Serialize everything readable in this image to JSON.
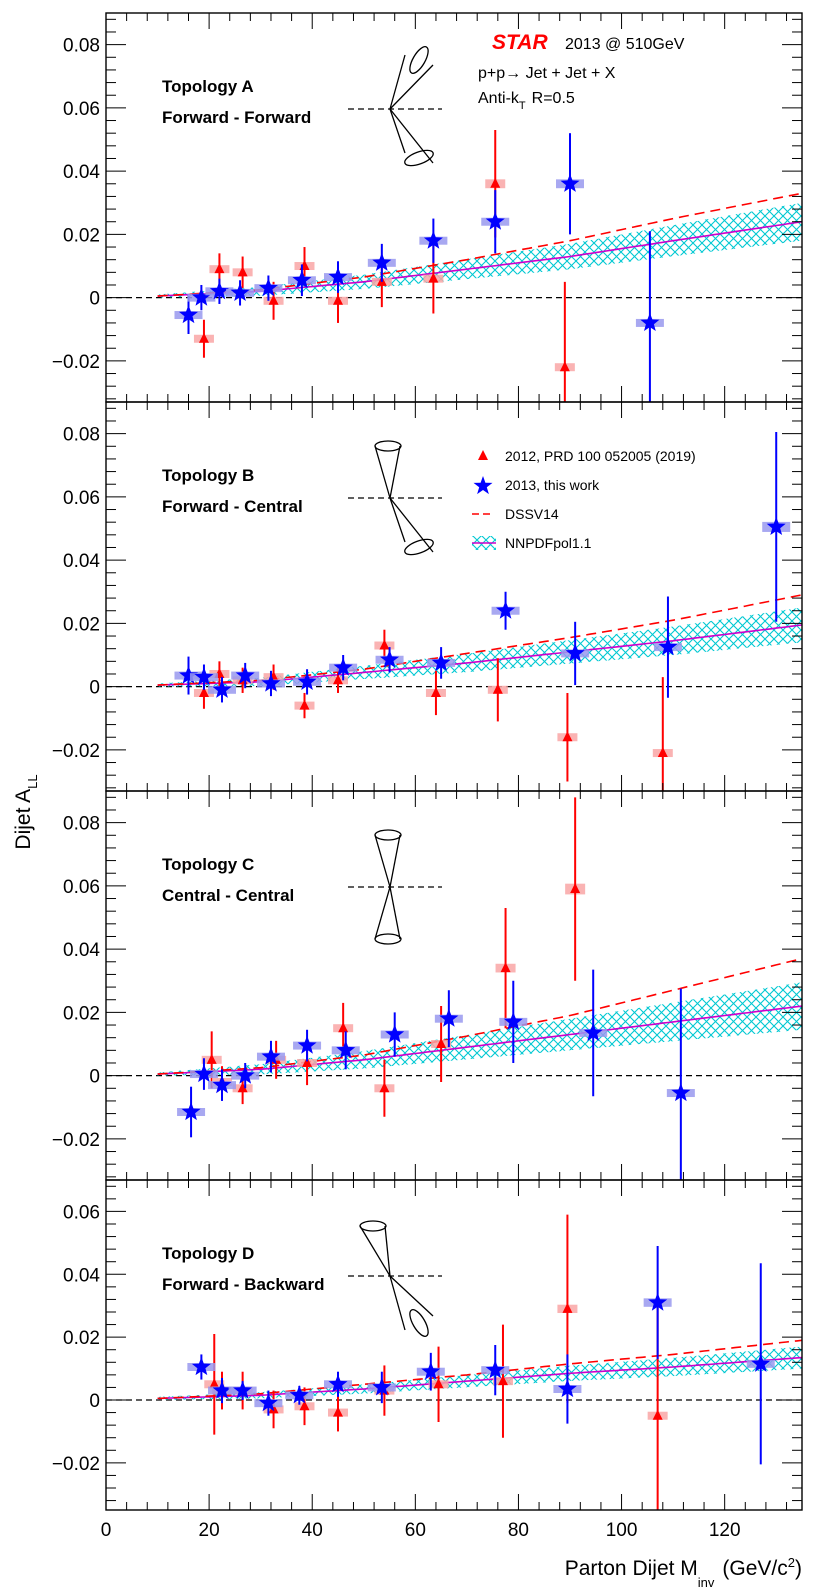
{
  "header": {
    "brand": "STAR",
    "year_energy": "2013 @ 510GeV",
    "process": "p+p→ Jet + Jet + X",
    "algo_main": "Anti-k",
    "algo_sub": "T",
    "algo_rest": "R=0.5"
  },
  "axes": {
    "ylabel_main": "Dijet A",
    "ylabel_sub": "LL",
    "xlabel_main": "Parton Dijet M",
    "xlabel_sub": "inv",
    "xlabel_units": "(GeV/c",
    "xlabel_power": "2",
    "xlabel_close": ")"
  },
  "legend": {
    "entries": [
      {
        "label": "2012, PRD 100 052005 (2019)",
        "type": "triangle",
        "color": "#ff0000"
      },
      {
        "label": "2013, this  work",
        "type": "star",
        "color": "#0000ff"
      },
      {
        "label": "DSSV14",
        "type": "dashed",
        "color": "#ff0000"
      },
      {
        "label": "NNPDFpol1.1",
        "type": "band",
        "color": "#cc00cc"
      }
    ]
  },
  "colors": {
    "red": "#ff0000",
    "blue": "#0000ff",
    "red_box": "#f9a6a6",
    "blue_box": "#9999ee",
    "band": "#00c8d2",
    "nnpdf_line": "#cc00cc"
  },
  "chart_data": [
    {
      "type": "scatter",
      "panel": "A",
      "title_line1": "Topology A",
      "title_line2": "Forward - Forward",
      "xlim": [
        0,
        135
      ],
      "ylim": [
        -0.033,
        0.09
      ],
      "yticks": [
        -0.02,
        0,
        0.02,
        0.04,
        0.06,
        0.08
      ],
      "ytick_labels": [
        "−0.02",
        "0",
        "0.02",
        "0.04",
        "0.06",
        "0.08"
      ],
      "series": [
        {
          "name": "2012, PRD 100 052005 (2019)",
          "marker": "triangle",
          "points": [
            {
              "x": 19.0,
              "y": -0.013,
              "err": 0.006
            },
            {
              "x": 22.0,
              "y": 0.009,
              "err": 0.005
            },
            {
              "x": 26.5,
              "y": 0.008,
              "err": 0.005
            },
            {
              "x": 32.5,
              "y": -0.001,
              "err": 0.006
            },
            {
              "x": 38.5,
              "y": 0.01,
              "err": 0.006
            },
            {
              "x": 45.0,
              "y": -0.001,
              "err": 0.007
            },
            {
              "x": 53.5,
              "y": 0.005,
              "err": 0.008
            },
            {
              "x": 63.5,
              "y": 0.006,
              "err": 0.011
            },
            {
              "x": 75.5,
              "y": 0.036,
              "err": 0.017
            },
            {
              "x": 89.0,
              "y": -0.022,
              "err": 0.027
            }
          ]
        },
        {
          "name": "2013, this  work",
          "marker": "star",
          "points": [
            {
              "x": 16.0,
              "y": -0.0055,
              "err": 0.006
            },
            {
              "x": 18.5,
              "y": 0.0,
              "err": 0.004
            },
            {
              "x": 22.0,
              "y": 0.002,
              "err": 0.004
            },
            {
              "x": 26.0,
              "y": 0.0015,
              "err": 0.004
            },
            {
              "x": 31.5,
              "y": 0.003,
              "err": 0.004
            },
            {
              "x": 38.0,
              "y": 0.0055,
              "err": 0.005
            },
            {
              "x": 45.0,
              "y": 0.0065,
              "err": 0.005
            },
            {
              "x": 53.5,
              "y": 0.011,
              "err": 0.006
            },
            {
              "x": 63.5,
              "y": 0.018,
              "err": 0.007
            },
            {
              "x": 75.5,
              "y": 0.024,
              "err": 0.01
            },
            {
              "x": 90.0,
              "y": 0.036,
              "err": 0.016
            },
            {
              "x": 105.5,
              "y": -0.008,
              "err": 0.029
            }
          ]
        },
        {
          "name": "DSSV14",
          "curve": [
            [
              10,
              0.0005
            ],
            [
              30,
              0.0025
            ],
            [
              50,
              0.0065
            ],
            [
              70,
              0.012
            ],
            [
              90,
              0.018
            ],
            [
              110,
              0.025
            ],
            [
              135,
              0.033
            ]
          ]
        },
        {
          "name": "NNPDFpol1.1",
          "curve": [
            [
              10,
              0.0005
            ],
            [
              30,
              0.002
            ],
            [
              50,
              0.005
            ],
            [
              70,
              0.009
            ],
            [
              90,
              0.013
            ],
            [
              110,
              0.018
            ],
            [
              135,
              0.024
            ]
          ],
          "band_half_width": [
            [
              10,
              0.0005
            ],
            [
              135,
              0.006
            ]
          ]
        }
      ]
    },
    {
      "type": "scatter",
      "panel": "B",
      "title_line1": "Topology B",
      "title_line2": "Forward - Central",
      "xlim": [
        0,
        135
      ],
      "ylim": [
        -0.033,
        0.09
      ],
      "yticks": [
        -0.02,
        0,
        0.02,
        0.04,
        0.06,
        0.08
      ],
      "ytick_labels": [
        "−0.02",
        "0",
        "0.02",
        "0.04",
        "0.06",
        "0.08"
      ],
      "series": [
        {
          "name": "2012, PRD 100 052005 (2019)",
          "marker": "triangle",
          "points": [
            {
              "x": 19.0,
              "y": -0.002,
              "err": 0.005
            },
            {
              "x": 22.0,
              "y": 0.004,
              "err": 0.004
            },
            {
              "x": 26.5,
              "y": 0.002,
              "err": 0.004
            },
            {
              "x": 32.5,
              "y": 0.003,
              "err": 0.004
            },
            {
              "x": 38.5,
              "y": -0.006,
              "err": 0.004
            },
            {
              "x": 45.0,
              "y": 0.002,
              "err": 0.004
            },
            {
              "x": 54.0,
              "y": 0.013,
              "err": 0.005
            },
            {
              "x": 64.0,
              "y": -0.002,
              "err": 0.007
            },
            {
              "x": 76.0,
              "y": -0.001,
              "err": 0.01
            },
            {
              "x": 89.5,
              "y": -0.016,
              "err": 0.014
            },
            {
              "x": 108.0,
              "y": -0.021,
              "err": 0.024
            }
          ]
        },
        {
          "name": "2013, this  work",
          "marker": "star",
          "points": [
            {
              "x": 16.0,
              "y": 0.0035,
              "err": 0.006
            },
            {
              "x": 19.0,
              "y": 0.003,
              "err": 0.004
            },
            {
              "x": 22.5,
              "y": -0.001,
              "err": 0.004
            },
            {
              "x": 27.0,
              "y": 0.0035,
              "err": 0.004
            },
            {
              "x": 32.0,
              "y": 0.001,
              "err": 0.004
            },
            {
              "x": 39.0,
              "y": 0.0015,
              "err": 0.004
            },
            {
              "x": 46.0,
              "y": 0.006,
              "err": 0.004
            },
            {
              "x": 55.0,
              "y": 0.0085,
              "err": 0.004
            },
            {
              "x": 65.0,
              "y": 0.0075,
              "err": 0.005
            },
            {
              "x": 77.5,
              "y": 0.024,
              "err": 0.006
            },
            {
              "x": 91.0,
              "y": 0.0105,
              "err": 0.01
            },
            {
              "x": 109.0,
              "y": 0.0125,
              "err": 0.016
            },
            {
              "x": 130.0,
              "y": 0.0505,
              "err": 0.03
            }
          ]
        },
        {
          "name": "DSSV14",
          "curve": [
            [
              10,
              0.0005
            ],
            [
              30,
              0.002
            ],
            [
              50,
              0.0055
            ],
            [
              70,
              0.0105
            ],
            [
              90,
              0.0155
            ],
            [
              110,
              0.021
            ],
            [
              135,
              0.029
            ]
          ]
        },
        {
          "name": "NNPDFpol1.1",
          "curve": [
            [
              10,
              0.0005
            ],
            [
              30,
              0.0015
            ],
            [
              50,
              0.0045
            ],
            [
              70,
              0.0075
            ],
            [
              90,
              0.011
            ],
            [
              110,
              0.0145
            ],
            [
              135,
              0.0195
            ]
          ],
          "band_half_width": [
            [
              10,
              0.0005
            ],
            [
              135,
              0.0055
            ]
          ]
        }
      ]
    },
    {
      "type": "scatter",
      "panel": "C",
      "title_line1": "Topology C",
      "title_line2": "Central - Central",
      "xlim": [
        0,
        135
      ],
      "ylim": [
        -0.033,
        0.09
      ],
      "yticks": [
        -0.02,
        0,
        0.02,
        0.04,
        0.06,
        0.08
      ],
      "ytick_labels": [
        "−0.02",
        "0",
        "0.02",
        "0.04",
        "0.06",
        "0.08"
      ],
      "series": [
        {
          "name": "2012, PRD 100 052005 (2019)",
          "marker": "triangle",
          "points": [
            {
              "x": 20.5,
              "y": 0.005,
              "err": 0.009
            },
            {
              "x": 22.5,
              "y": -0.002,
              "err": 0.005
            },
            {
              "x": 26.5,
              "y": -0.004,
              "err": 0.005
            },
            {
              "x": 33.0,
              "y": 0.005,
              "err": 0.006
            },
            {
              "x": 39.0,
              "y": 0.004,
              "err": 0.007
            },
            {
              "x": 46.0,
              "y": 0.015,
              "err": 0.008
            },
            {
              "x": 54.0,
              "y": -0.004,
              "err": 0.009
            },
            {
              "x": 65.0,
              "y": 0.01,
              "err": 0.012
            },
            {
              "x": 77.5,
              "y": 0.034,
              "err": 0.019
            },
            {
              "x": 91.0,
              "y": 0.059,
              "err": 0.029
            }
          ]
        },
        {
          "name": "2013, this  work",
          "marker": "star",
          "points": [
            {
              "x": 16.5,
              "y": -0.0115,
              "err": 0.008
            },
            {
              "x": 19.0,
              "y": 0.0005,
              "err": 0.005
            },
            {
              "x": 22.5,
              "y": -0.003,
              "err": 0.005
            },
            {
              "x": 27.0,
              "y": 0.0,
              "err": 0.004
            },
            {
              "x": 32.0,
              "y": 0.006,
              "err": 0.005
            },
            {
              "x": 39.0,
              "y": 0.0095,
              "err": 0.005
            },
            {
              "x": 46.5,
              "y": 0.008,
              "err": 0.006
            },
            {
              "x": 56.0,
              "y": 0.013,
              "err": 0.007
            },
            {
              "x": 66.5,
              "y": 0.018,
              "err": 0.009
            },
            {
              "x": 79.0,
              "y": 0.017,
              "err": 0.013
            },
            {
              "x": 94.5,
              "y": 0.0135,
              "err": 0.02
            },
            {
              "x": 111.5,
              "y": -0.0055,
              "err": 0.033
            }
          ]
        },
        {
          "name": "DSSV14",
          "curve": [
            [
              10,
              0.0005
            ],
            [
              30,
              0.0025
            ],
            [
              50,
              0.0065
            ],
            [
              70,
              0.0125
            ],
            [
              90,
              0.019
            ],
            [
              110,
              0.027
            ],
            [
              135,
              0.037
            ]
          ]
        },
        {
          "name": "NNPDFpol1.1",
          "curve": [
            [
              10,
              0.0005
            ],
            [
              30,
              0.002
            ],
            [
              50,
              0.005
            ],
            [
              70,
              0.009
            ],
            [
              90,
              0.013
            ],
            [
              110,
              0.017
            ],
            [
              135,
              0.022
            ]
          ],
          "band_half_width": [
            [
              10,
              0.0005
            ],
            [
              135,
              0.0075
            ]
          ]
        }
      ]
    },
    {
      "type": "scatter",
      "panel": "D",
      "title_line1": "Topology D",
      "title_line2": "Forward - Backward",
      "xlim": [
        0,
        135
      ],
      "ylim": [
        -0.035,
        0.07
      ],
      "yticks": [
        -0.02,
        0,
        0.02,
        0.04,
        0.06
      ],
      "ytick_labels": [
        "−0.02",
        "0",
        "0.02",
        "0.04",
        "0.06"
      ],
      "xticks": [
        0,
        20,
        40,
        60,
        80,
        100,
        120
      ],
      "xtick_labels": [
        "0",
        "20",
        "40",
        "60",
        "80",
        "100",
        "120"
      ],
      "series": [
        {
          "name": "2012, PRD 100 052005 (2019)",
          "marker": "triangle",
          "points": [
            {
              "x": 21.0,
              "y": 0.005,
              "err": 0.016
            },
            {
              "x": 22.5,
              "y": 0.003,
              "err": 0.006
            },
            {
              "x": 26.5,
              "y": 0.003,
              "err": 0.006
            },
            {
              "x": 32.5,
              "y": -0.003,
              "err": 0.006
            },
            {
              "x": 38.5,
              "y": -0.002,
              "err": 0.006
            },
            {
              "x": 45.0,
              "y": -0.004,
              "err": 0.006
            },
            {
              "x": 54.0,
              "y": 0.003,
              "err": 0.008
            },
            {
              "x": 64.5,
              "y": 0.005,
              "err": 0.012
            },
            {
              "x": 77.0,
              "y": 0.006,
              "err": 0.018
            },
            {
              "x": 89.5,
              "y": 0.029,
              "err": 0.03
            },
            {
              "x": 107.0,
              "y": -0.005,
              "err": 0.035
            }
          ]
        },
        {
          "name": "2013, this  work",
          "marker": "star",
          "points": [
            {
              "x": 18.5,
              "y": 0.0105,
              "err": 0.004
            },
            {
              "x": 22.5,
              "y": 0.003,
              "err": 0.004
            },
            {
              "x": 26.5,
              "y": 0.003,
              "err": 0.003
            },
            {
              "x": 31.5,
              "y": -0.001,
              "err": 0.004
            },
            {
              "x": 37.5,
              "y": 0.0015,
              "err": 0.003
            },
            {
              "x": 45.0,
              "y": 0.005,
              "err": 0.004
            },
            {
              "x": 53.5,
              "y": 0.004,
              "err": 0.005
            },
            {
              "x": 63.0,
              "y": 0.009,
              "err": 0.006
            },
            {
              "x": 75.5,
              "y": 0.0095,
              "err": 0.008
            },
            {
              "x": 89.5,
              "y": 0.0035,
              "err": 0.011
            },
            {
              "x": 107.0,
              "y": 0.031,
              "err": 0.018
            },
            {
              "x": 127.0,
              "y": 0.0115,
              "err": 0.032
            }
          ]
        },
        {
          "name": "DSSV14",
          "curve": [
            [
              10,
              0.0005
            ],
            [
              30,
              0.002
            ],
            [
              50,
              0.005
            ],
            [
              70,
              0.008
            ],
            [
              90,
              0.0115
            ],
            [
              110,
              0.0145
            ],
            [
              135,
              0.019
            ]
          ]
        },
        {
          "name": "NNPDFpol1.1",
          "curve": [
            [
              10,
              0.0005
            ],
            [
              30,
              0.0015
            ],
            [
              50,
              0.0035
            ],
            [
              70,
              0.006
            ],
            [
              90,
              0.0085
            ],
            [
              110,
              0.0105
            ],
            [
              135,
              0.0135
            ]
          ],
          "band_half_width": [
            [
              10,
              0.0005
            ],
            [
              135,
              0.0035
            ]
          ]
        }
      ]
    }
  ]
}
